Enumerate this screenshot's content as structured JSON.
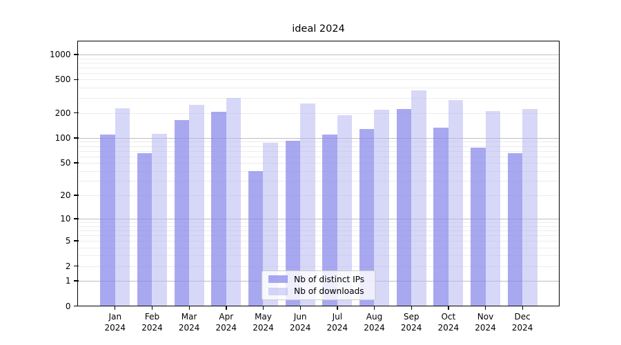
{
  "chart_data": {
    "type": "bar",
    "title": "ideal 2024",
    "categories": [
      {
        "month": "Jan",
        "year": "2024"
      },
      {
        "month": "Feb",
        "year": "2024"
      },
      {
        "month": "Mar",
        "year": "2024"
      },
      {
        "month": "Apr",
        "year": "2024"
      },
      {
        "month": "May",
        "year": "2024"
      },
      {
        "month": "Jun",
        "year": "2024"
      },
      {
        "month": "Jul",
        "year": "2024"
      },
      {
        "month": "Aug",
        "year": "2024"
      },
      {
        "month": "Sep",
        "year": "2024"
      },
      {
        "month": "Oct",
        "year": "2024"
      },
      {
        "month": "Nov",
        "year": "2024"
      },
      {
        "month": "Dec",
        "year": "2024"
      }
    ],
    "series": [
      {
        "key": "distinct-ips",
        "name": "Nb of distinct IPs",
        "color": "#8888ea",
        "alpha": 0.73,
        "values": [
          110,
          65,
          165,
          207,
          40,
          93,
          111,
          128,
          222,
          134,
          77,
          65
        ]
      },
      {
        "key": "downloads",
        "name": "Nb of downloads",
        "color": "#b6b6f2",
        "alpha": 0.54,
        "values": [
          229,
          112,
          250,
          302,
          88,
          260,
          187,
          220,
          372,
          286,
          212,
          221
        ]
      }
    ],
    "yscale": "log1p",
    "yticks": [
      0,
      1,
      2,
      5,
      10,
      20,
      50,
      100,
      200,
      500,
      1000
    ],
    "ytick_major": [
      1,
      10,
      100,
      1000
    ],
    "ylim": [
      0,
      1470
    ],
    "grid": {
      "major_color": "#bdbdbd",
      "minor_color": "#ececec"
    },
    "legend_position": "lower center inside"
  }
}
